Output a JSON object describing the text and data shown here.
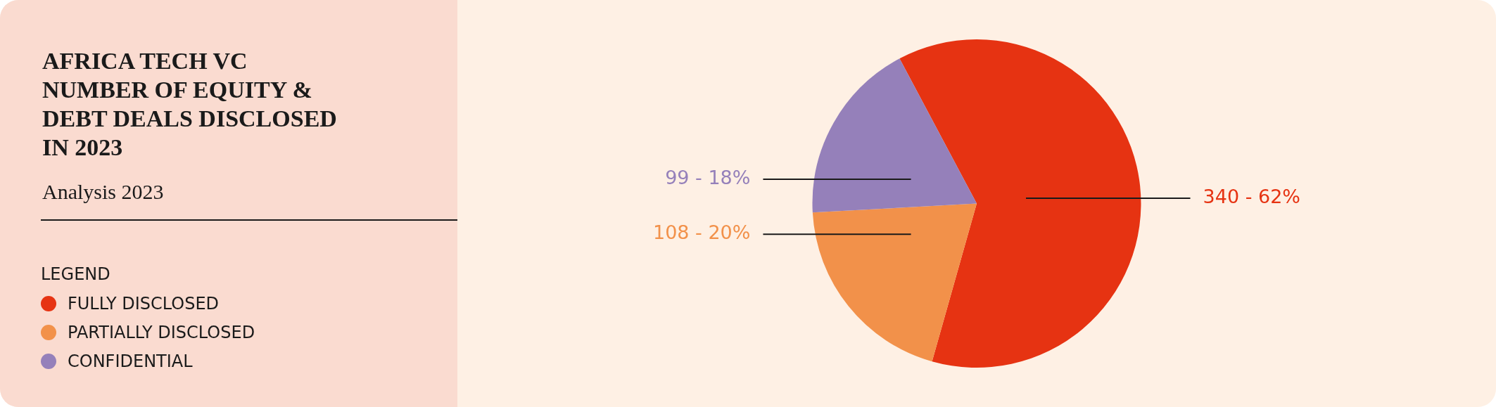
{
  "chart_data": {
    "type": "pie",
    "title": "AFRICA TECH VC NUMBER OF EQUITY & DEBT DEALS DISCLOSED IN 2023",
    "subtitle": "Analysis 2023",
    "legend_title": "LEGEND",
    "legend": "left",
    "categories": [
      "FULLY DISCLOSED",
      "PARTIALLY DISCLOSED",
      "CONFIDENTIAL"
    ],
    "values": [
      340,
      108,
      99
    ],
    "colors": [
      "#e63312",
      "#f2914a",
      "#9580ba"
    ],
    "value_labels": [
      "340 - 62%",
      "108 - 20%",
      "99 - 18%"
    ]
  }
}
